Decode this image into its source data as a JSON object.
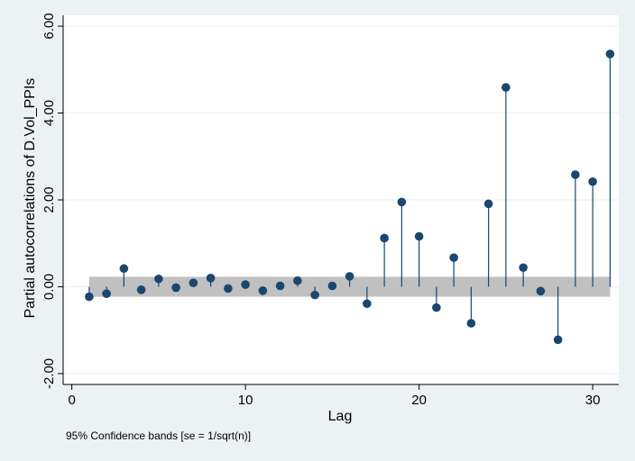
{
  "chart_data": {
    "type": "scatter",
    "subtype": "pacf-spike-plot",
    "xlabel": "Lag",
    "ylabel": "Partial autocorrelations of D.Vol_PPIs",
    "note": "95% Confidence bands [se = 1/sqrt(n)]",
    "x_ticks": [
      0,
      10,
      20,
      30
    ],
    "x_tick_labels": [
      "0",
      "10",
      "20",
      "30"
    ],
    "y_ticks": [
      -2,
      0,
      2,
      4,
      6
    ],
    "y_tick_labels": [
      "-2.00",
      "0.00",
      "2.00",
      "4.00",
      "6.00"
    ],
    "xlim": [
      -0.5,
      31.5
    ],
    "ylim": [
      -2.25,
      6.25
    ],
    "confidence_band": {
      "lower": -0.23,
      "upper": 0.23,
      "x_start": 1,
      "x_end": 31
    },
    "x": [
      1,
      2,
      3,
      4,
      5,
      6,
      7,
      8,
      9,
      10,
      11,
      12,
      13,
      14,
      15,
      16,
      17,
      18,
      19,
      20,
      21,
      22,
      23,
      24,
      25,
      26,
      27,
      28,
      29,
      30,
      31
    ],
    "values": [
      -0.23,
      -0.16,
      0.42,
      -0.07,
      0.18,
      -0.02,
      0.09,
      0.2,
      -0.04,
      0.05,
      -0.09,
      0.02,
      0.14,
      -0.19,
      0.02,
      0.24,
      -0.39,
      1.12,
      1.95,
      1.16,
      -0.48,
      0.67,
      -0.84,
      1.91,
      4.59,
      0.44,
      -0.1,
      -1.22,
      2.58,
      2.42,
      5.36
    ],
    "grid": true,
    "legend": "none",
    "colors": {
      "background": "#eaf2f3",
      "plot_area": "#ffffff",
      "marker": "#1a476f",
      "spike": "#1a476f",
      "band": "#c0c0c0",
      "grid": "#eaf2f3"
    }
  }
}
